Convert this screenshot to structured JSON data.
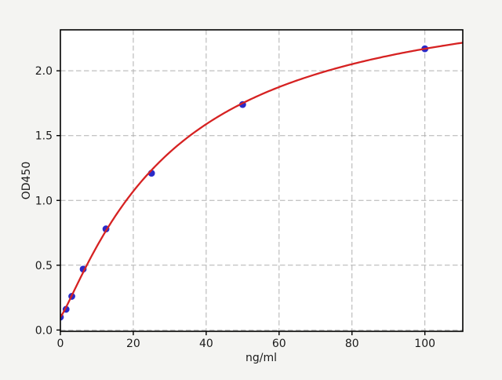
{
  "chart_data": {
    "type": "scatter",
    "title": "",
    "xlabel": "ng/ml",
    "ylabel": "OD450",
    "xlim": [
      0,
      110.4
    ],
    "ylim": [
      -0.01,
      2.316
    ],
    "xticks": [
      0,
      20,
      40,
      60,
      80,
      100
    ],
    "xtick_labels": [
      "0",
      "20",
      "40",
      "60",
      "80",
      "100"
    ],
    "yticks": [
      0,
      0.5,
      1.0,
      1.5,
      2.0
    ],
    "ytick_labels": [
      "0.0",
      "0.5",
      "1.0",
      "1.5",
      "2.0"
    ],
    "grid": true,
    "grid_style": "dashed",
    "legend": false,
    "series": {
      "standards": {
        "type": "scatter",
        "x": [
          0,
          1.5625,
          3.125,
          6.25,
          12.5,
          25,
          50,
          100
        ],
        "y": [
          0.1,
          0.16,
          0.26,
          0.47,
          0.78,
          1.21,
          1.74,
          2.17
        ],
        "color": "#2a2ac8",
        "marker": "circle",
        "marker_radius": 4.4
      },
      "fit_curve": {
        "type": "line",
        "model": "4pl",
        "params": {
          "a": 0.1,
          "b": 1.168,
          "c": 31.16,
          "d": 2.7
        },
        "x_range": [
          0,
          110.4
        ],
        "color": "#d62222",
        "line_width": 2.3
      }
    },
    "colors": {
      "figure_bg": "#f4f4f2",
      "plot_bg": "#ffffff",
      "grid": "#b0b0b0",
      "spine": "#000000",
      "tick_label": "#1a1a1a"
    }
  }
}
